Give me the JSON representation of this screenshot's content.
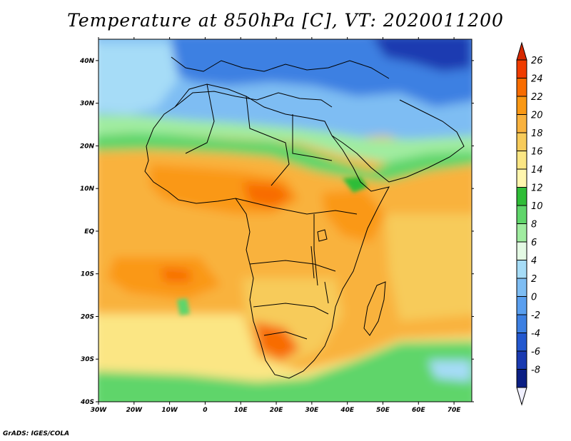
{
  "title": "Temperature at 850hPa [C], VT: 2020011200",
  "credit": "GrADS: IGES/COLA",
  "map": {
    "region": "Africa",
    "projection": "latlon",
    "lon_range": [
      -30,
      75
    ],
    "lat_range": [
      -40,
      45
    ],
    "lat_ticks": [
      {
        "value": 40,
        "label": "40N"
      },
      {
        "value": 30,
        "label": "30N"
      },
      {
        "value": 20,
        "label": "20N"
      },
      {
        "value": 10,
        "label": "10N"
      },
      {
        "value": 0,
        "label": "EQ"
      },
      {
        "value": -10,
        "label": "10S"
      },
      {
        "value": -20,
        "label": "20S"
      },
      {
        "value": -30,
        "label": "30S"
      },
      {
        "value": -40,
        "label": "40S"
      }
    ],
    "lon_ticks": [
      {
        "value": -30,
        "label": "30W"
      },
      {
        "value": -20,
        "label": "20W"
      },
      {
        "value": -10,
        "label": "10W"
      },
      {
        "value": 0,
        "label": "0"
      },
      {
        "value": 10,
        "label": "10E"
      },
      {
        "value": 20,
        "label": "20E"
      },
      {
        "value": 30,
        "label": "30E"
      },
      {
        "value": 40,
        "label": "40E"
      },
      {
        "value": 50,
        "label": "50E"
      },
      {
        "value": 60,
        "label": "60E"
      },
      {
        "value": 70,
        "label": "70E"
      }
    ]
  },
  "colorbar": {
    "levels": [
      {
        "label": "26",
        "color": "#f03c00"
      },
      {
        "label": "24",
        "color": "#f86c00"
      },
      {
        "label": "22",
        "color": "#fa9814"
      },
      {
        "label": "20",
        "color": "#f9b23e"
      },
      {
        "label": "18",
        "color": "#f7cb5a"
      },
      {
        "label": "16",
        "color": "#fbe684"
      },
      {
        "label": "14",
        "color": "#fff6ae"
      },
      {
        "label": "12",
        "color": "#2fbd37"
      },
      {
        "label": "10",
        "color": "#5fd56a"
      },
      {
        "label": "8",
        "color": "#a0eca0"
      },
      {
        "label": "6",
        "color": "#e4fae4"
      },
      {
        "label": "4",
        "color": "#a6dcf7"
      },
      {
        "label": "2",
        "color": "#7ebdf3"
      },
      {
        "label": "0",
        "color": "#5a9fef"
      },
      {
        "label": "-2",
        "color": "#3d80e2"
      },
      {
        "label": "-4",
        "color": "#2358cf"
      },
      {
        "label": "-6",
        "color": "#1a3ab1"
      },
      {
        "label": "-8",
        "color": "#0b1f84"
      }
    ],
    "top_color": "#d62800",
    "bottom_color": "#f0f0ff"
  },
  "field_colors": {
    "deep_cold": "#1a3ab1",
    "cold": "#3d80e2",
    "cool": "#7ebdf3",
    "mild": "#a0eca0",
    "green": "#5fd56a",
    "dark_green": "#2fbd37",
    "pale": "#fff6ae",
    "warm": "#f7cb5a",
    "warmer": "#f9b23e",
    "hot": "#fa9814",
    "hotter": "#f86c00",
    "hottest": "#f03c00"
  }
}
